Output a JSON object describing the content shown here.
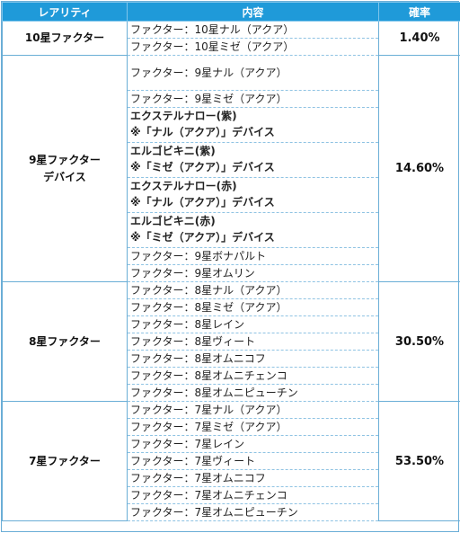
{
  "header": {
    "rarity": "レアリティ",
    "content": "内容",
    "rate": "確率"
  },
  "groups": [
    {
      "rarity": "10星ファクター",
      "rate": "1.40%",
      "items": [
        "ファクター：10星ナル（アクア）",
        "ファクター：10星ミゼ（アクア）"
      ]
    },
    {
      "rarity_line1": "9星ファクター",
      "rarity_line2": "デバイス",
      "rate": "14.60%",
      "items": [
        "ファクター：9星ナル（アクア）",
        "ファクター：9星ミゼ（アクア）",
        "ファクター：9星ボナパルト",
        "ファクター：9星オムリン"
      ],
      "devices": [
        {
          "name": "エクステルナロー(紫)",
          "note": "※「ナル（アクア）」デバイス",
          "color": "#7b1fb4"
        },
        {
          "name": "エルゴビキニ(紫)",
          "note": "※「ミゼ（アクア）」デバイス",
          "color": "#7b1fb4"
        },
        {
          "name": "エクステルナロー(赤)",
          "note": "※「ナル（アクア）」デバイス",
          "color": "#b3261e"
        },
        {
          "name": "エルゴビキニ(赤)",
          "note": "※「ミゼ（アクア）」デバイス",
          "color": "#b3261e"
        }
      ]
    },
    {
      "rarity": "8星ファクター",
      "rate": "30.50%",
      "items": [
        "ファクター：8星ナル（アクア）",
        "ファクター：8星ミゼ（アクア）",
        "ファクター：8星レイン",
        "ファクター：8星ヴィート",
        "ファクター：8星オムニコフ",
        "ファクター：8星オムニチェンコ",
        "ファクター：8星オムニピューチン"
      ]
    },
    {
      "rarity": "7星ファクター",
      "rate": "53.50%",
      "items": [
        "ファクター：7星ナル（アクア）",
        "ファクター：7星ミゼ（アクア）",
        "ファクター：7星レイン",
        "ファクター：7星ヴィート",
        "ファクター：7星オムニコフ",
        "ファクター：7星オムニチェンコ",
        "ファクター：7星オムニピューチン"
      ]
    }
  ]
}
